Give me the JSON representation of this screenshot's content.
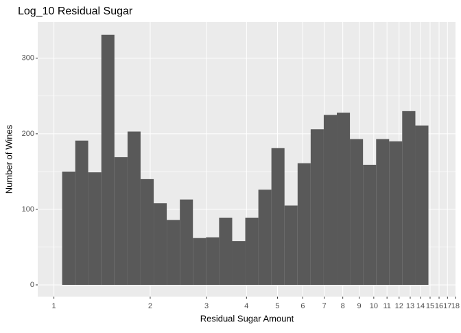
{
  "chart_data": {
    "type": "histogram",
    "title": "Log_10 Residual Sugar",
    "x_label": "Residual Sugar Amount",
    "y_label": "Number of Wines",
    "bins": [
      1.061,
      1.166,
      1.28,
      1.407,
      1.546,
      1.699,
      1.866,
      2.051,
      2.253,
      2.476,
      2.72,
      2.989,
      3.284,
      3.609,
      3.965,
      4.357,
      4.786,
      5.259,
      5.779,
      6.349,
      6.976,
      7.665,
      8.422,
      9.254,
      10.17,
      11.17,
      12.27,
      13.49,
      14.82
    ],
    "values": [
      150,
      191,
      149,
      331,
      169,
      203,
      140,
      108,
      86,
      113,
      62,
      63,
      89,
      58,
      89,
      126,
      181,
      105,
      161,
      206,
      225,
      228,
      193,
      159,
      193,
      190,
      230,
      211
    ],
    "color": "#595959",
    "x_scale": "log",
    "xlim": [
      0.89,
      18.1
    ],
    "xticks": [
      1,
      2,
      3,
      4,
      5,
      6,
      7,
      8,
      9,
      10,
      11,
      12,
      13,
      14,
      15,
      16,
      17,
      18
    ],
    "ylim": [
      -15.5,
      348
    ],
    "yticks": [
      0,
      100,
      200,
      300
    ],
    "grid": true
  }
}
